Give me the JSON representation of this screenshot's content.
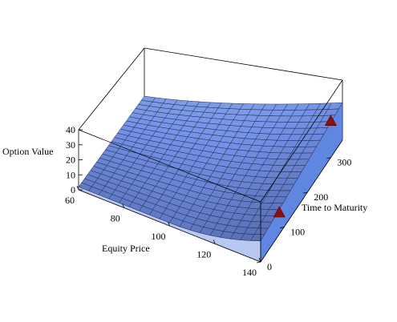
{
  "chart_data": {
    "type": "surface3d",
    "axes": {
      "x": {
        "label": "Equity Price",
        "range": [
          60,
          140
        ],
        "ticks": [
          60,
          80,
          100,
          120,
          140
        ]
      },
      "y": {
        "label": "Time to Maturity",
        "range": [
          0,
          350
        ],
        "ticks": [
          0,
          100,
          200,
          300
        ]
      },
      "z": {
        "label": "Option Value",
        "range": [
          0,
          40
        ],
        "ticks": [
          0,
          10,
          20,
          30,
          40
        ]
      }
    },
    "surface": {
      "description_points": [
        {
          "equity_price": 60,
          "time_to_maturity": 0,
          "option_value": 2
        },
        {
          "equity_price": 100,
          "time_to_maturity": 0,
          "option_value": 2
        },
        {
          "equity_price": 140,
          "time_to_maturity": 0,
          "option_value": 14
        },
        {
          "equity_price": 140,
          "time_to_maturity": 350,
          "option_value": 25
        },
        {
          "equity_price": 60,
          "time_to_maturity": 350,
          "option_value": 8
        }
      ],
      "color": "#7f9ee6"
    },
    "markers": [
      {
        "equity_price": 140,
        "time_to_maturity": 80,
        "option_value": 14
      },
      {
        "equity_price": 140,
        "time_to_maturity": 300,
        "option_value": 24
      }
    ],
    "marker_color": "#8b1010",
    "box": true
  }
}
